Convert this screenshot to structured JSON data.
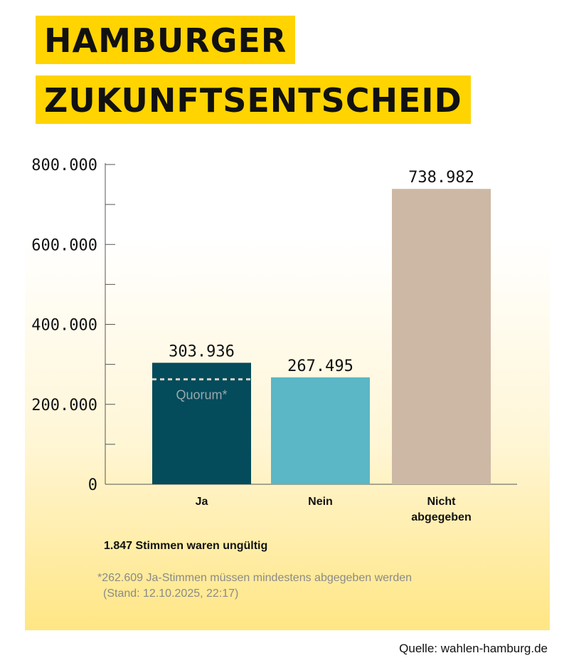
{
  "title_line1": "HAMBURGER",
  "title_line2": "ZUKUNFTSENTSCHEID",
  "colors": {
    "title_background": "#ffd400",
    "ja": "#044b5b",
    "nein": "#5bb6c6",
    "nicht": "#cdb8a6",
    "quorum_line": "#d8d0c4"
  },
  "chart_data": {
    "type": "bar",
    "title": "HAMBURGER ZUKUNFTSENTSCHEID",
    "categories": [
      "Ja",
      "Nein",
      "Nicht abgegeben"
    ],
    "category_lines": [
      [
        "Ja"
      ],
      [
        "Nein"
      ],
      [
        "Nicht",
        "abgegeben"
      ]
    ],
    "values": [
      303936,
      267495,
      738982
    ],
    "value_labels": [
      "303.936",
      "267.495",
      "738.982"
    ],
    "ylim": [
      0,
      800000
    ],
    "yticks_major": [
      0,
      200000,
      400000,
      600000,
      800000
    ],
    "ytick_labels": [
      "0",
      "200.000",
      "400.000",
      "600.000",
      "800.000"
    ],
    "yticks_minor": [
      100000,
      300000,
      500000,
      700000
    ],
    "quorum": {
      "value": 262609,
      "label": "Quorum*"
    },
    "xlabel": "",
    "ylabel": ""
  },
  "note_invalid": "1.847 Stimmen waren ungültig",
  "footnote_line1": "*262.609 Ja-Stimmen müssen mindestens abgegeben werden",
  "footnote_line2": "(Stand: 12.10.2025, 22:17)",
  "source": "Quelle: wahlen-hamburg.de"
}
